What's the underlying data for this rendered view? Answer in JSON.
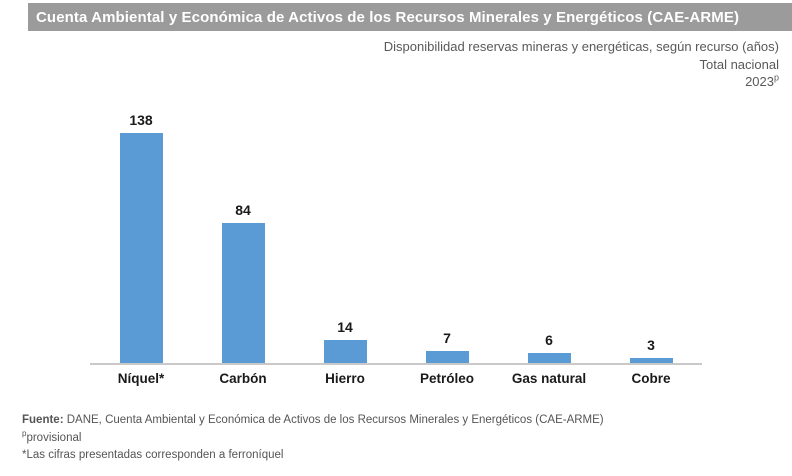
{
  "header": {
    "title": "Cuenta Ambiental y Económica de Activos de los Recursos Minerales y Energéticos (CAE-ARME)"
  },
  "subtitle": {
    "line1": "Disponibilidad reservas mineras y energéticas, según recurso (años)",
    "line2": "Total nacional",
    "year": "2023",
    "year_superscript": "p"
  },
  "chart_data": {
    "type": "bar",
    "title": "Disponibilidad reservas mineras y energéticas, según recurso (años)",
    "categories": [
      "Níquel*",
      "Carbón",
      "Hierro",
      "Petróleo",
      "Gas natural",
      "Cobre"
    ],
    "values": [
      138,
      84,
      14,
      7,
      6,
      3
    ],
    "xlabel": "",
    "ylabel": "",
    "ylim": [
      0,
      150
    ],
    "grid": false,
    "legend": false,
    "data_labels": true,
    "bar_color": "#5B9BD5"
  },
  "footer": {
    "source_label": "Fuente:",
    "source_text": "DANE, Cuenta Ambiental y Económica de Activos de los Recursos Minerales y Energéticos (CAE-ARME)",
    "note1_superscript": "p",
    "note1_text": "provisional",
    "note2": "*Las cifras presentadas corresponden a ferroníquel"
  },
  "colors": {
    "banner_bg": "#9B9B9B",
    "banner_text": "#FFFFFF",
    "bar": "#5B9BD5",
    "axis_line": "#C9C9C9",
    "subtitle_text": "#595959",
    "footer_text": "#555555",
    "label_text": "#1A1A1A"
  }
}
